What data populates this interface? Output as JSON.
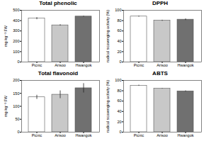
{
  "chart_data": [
    {
      "type": "bar",
      "title": "Total phenolic",
      "y_label": "mg·kg⁻¹ FW",
      "categories": [
        "Picnic",
        "Arisoo",
        "Hwangok"
      ],
      "values": [
        420,
        355,
        440
      ],
      "errors": [
        10,
        6,
        4
      ],
      "colors": [
        "#ffffff",
        "#c8c8c8",
        "#707070"
      ],
      "ylim": [
        0,
        500
      ],
      "yticks": [
        0,
        100,
        200,
        300,
        400,
        500
      ]
    },
    {
      "type": "bar",
      "title": "DPPH",
      "y_label": "radical scavenging activity (%)",
      "categories": [
        "Picnic",
        "Arisoo",
        "Hwangok"
      ],
      "values": [
        88,
        80,
        82
      ],
      "errors": [
        1,
        1,
        1.5
      ],
      "colors": [
        "#ffffff",
        "#c8c8c8",
        "#707070"
      ],
      "ylim": [
        0,
        100
      ],
      "yticks": [
        0,
        20,
        40,
        60,
        80,
        100
      ]
    },
    {
      "type": "bar",
      "title": "Total flavonoid",
      "y_label": "mg·kg⁻¹ FW",
      "categories": [
        "Picnic",
        "Arisoo",
        "Hwangok"
      ],
      "values": [
        135,
        145,
        170
      ],
      "errors": [
        8,
        15,
        18
      ],
      "colors": [
        "#ffffff",
        "#c8c8c8",
        "#707070"
      ],
      "ylim": [
        0,
        200
      ],
      "yticks": [
        0,
        50,
        100,
        150,
        200
      ]
    },
    {
      "type": "bar",
      "title": "ABTS",
      "y_label": "radical scavenging activity (%)",
      "categories": [
        "Picnic",
        "Arisoo",
        "Hwangok"
      ],
      "values": [
        90,
        84,
        79
      ],
      "errors": [
        1,
        0.5,
        1
      ],
      "colors": [
        "#ffffff",
        "#c8c8c8",
        "#707070"
      ],
      "ylim": [
        0,
        100
      ],
      "yticks": [
        0,
        20,
        40,
        60,
        80,
        100
      ]
    }
  ]
}
